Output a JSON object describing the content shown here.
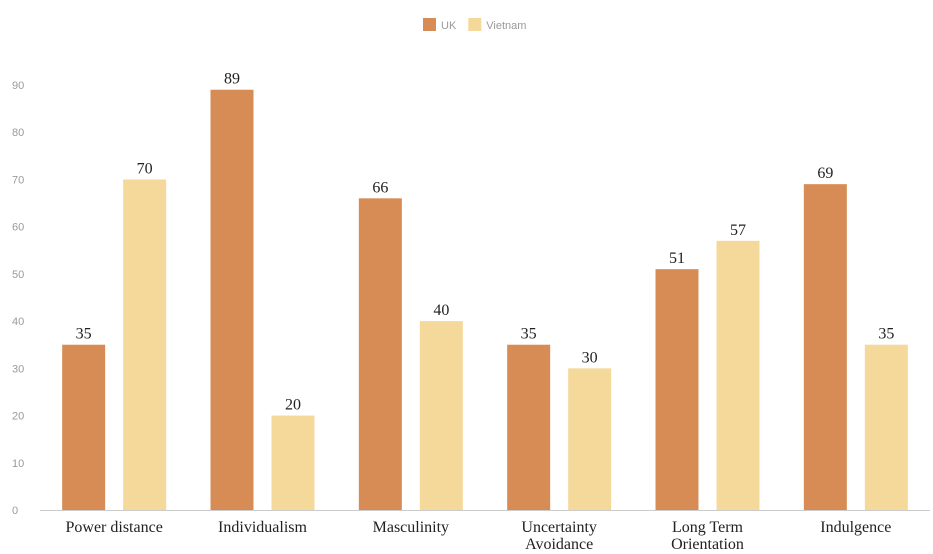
{
  "chart_data": {
    "type": "bar",
    "categories": [
      [
        "Power distance"
      ],
      [
        "Individualism"
      ],
      [
        "Masculinity"
      ],
      [
        "Uncertainty",
        "Avoidance"
      ],
      [
        "Long Term",
        "Orientation"
      ],
      [
        "Indulgence"
      ]
    ],
    "series": [
      {
        "name": "UK",
        "color": "#d68c54",
        "values": [
          35,
          89,
          66,
          35,
          51,
          69
        ]
      },
      {
        "name": "Vietnam",
        "color": "#f5d99b",
        "values": [
          70,
          20,
          40,
          30,
          57,
          35
        ]
      }
    ],
    "yticks": [
      0,
      10,
      20,
      30,
      40,
      50,
      60,
      70,
      80,
      90
    ],
    "ylim": [
      0,
      90
    ],
    "title": "",
    "xlabel": "",
    "ylabel": "",
    "legend_position": "top-center",
    "grid": false,
    "data_labels": true
  }
}
